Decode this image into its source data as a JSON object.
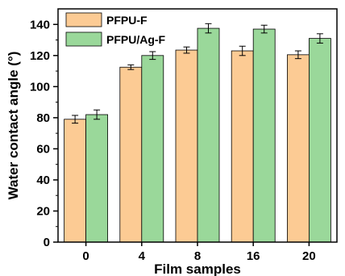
{
  "chart_data": {
    "type": "bar",
    "xlabel": "Film samples",
    "ylabel": "Water contact angle (°)",
    "categories": [
      "0",
      "4",
      "8",
      "16",
      "20"
    ],
    "ylim": [
      0,
      150
    ],
    "yticks": [
      0,
      20,
      40,
      60,
      80,
      100,
      120,
      140
    ],
    "legend_position": "top-left",
    "grid": false,
    "series": [
      {
        "name": "PFPU-F",
        "color": "#FCCB94",
        "values": [
          79,
          112.5,
          123.5,
          123,
          120.5
        ],
        "errors": [
          2.5,
          1.5,
          2,
          3,
          2.5
        ]
      },
      {
        "name": "PFPU/Ag-F",
        "color": "#9AD89A",
        "values": [
          82,
          120,
          137.5,
          137,
          131
        ],
        "errors": [
          3,
          2.5,
          3,
          2.5,
          3
        ]
      }
    ]
  }
}
